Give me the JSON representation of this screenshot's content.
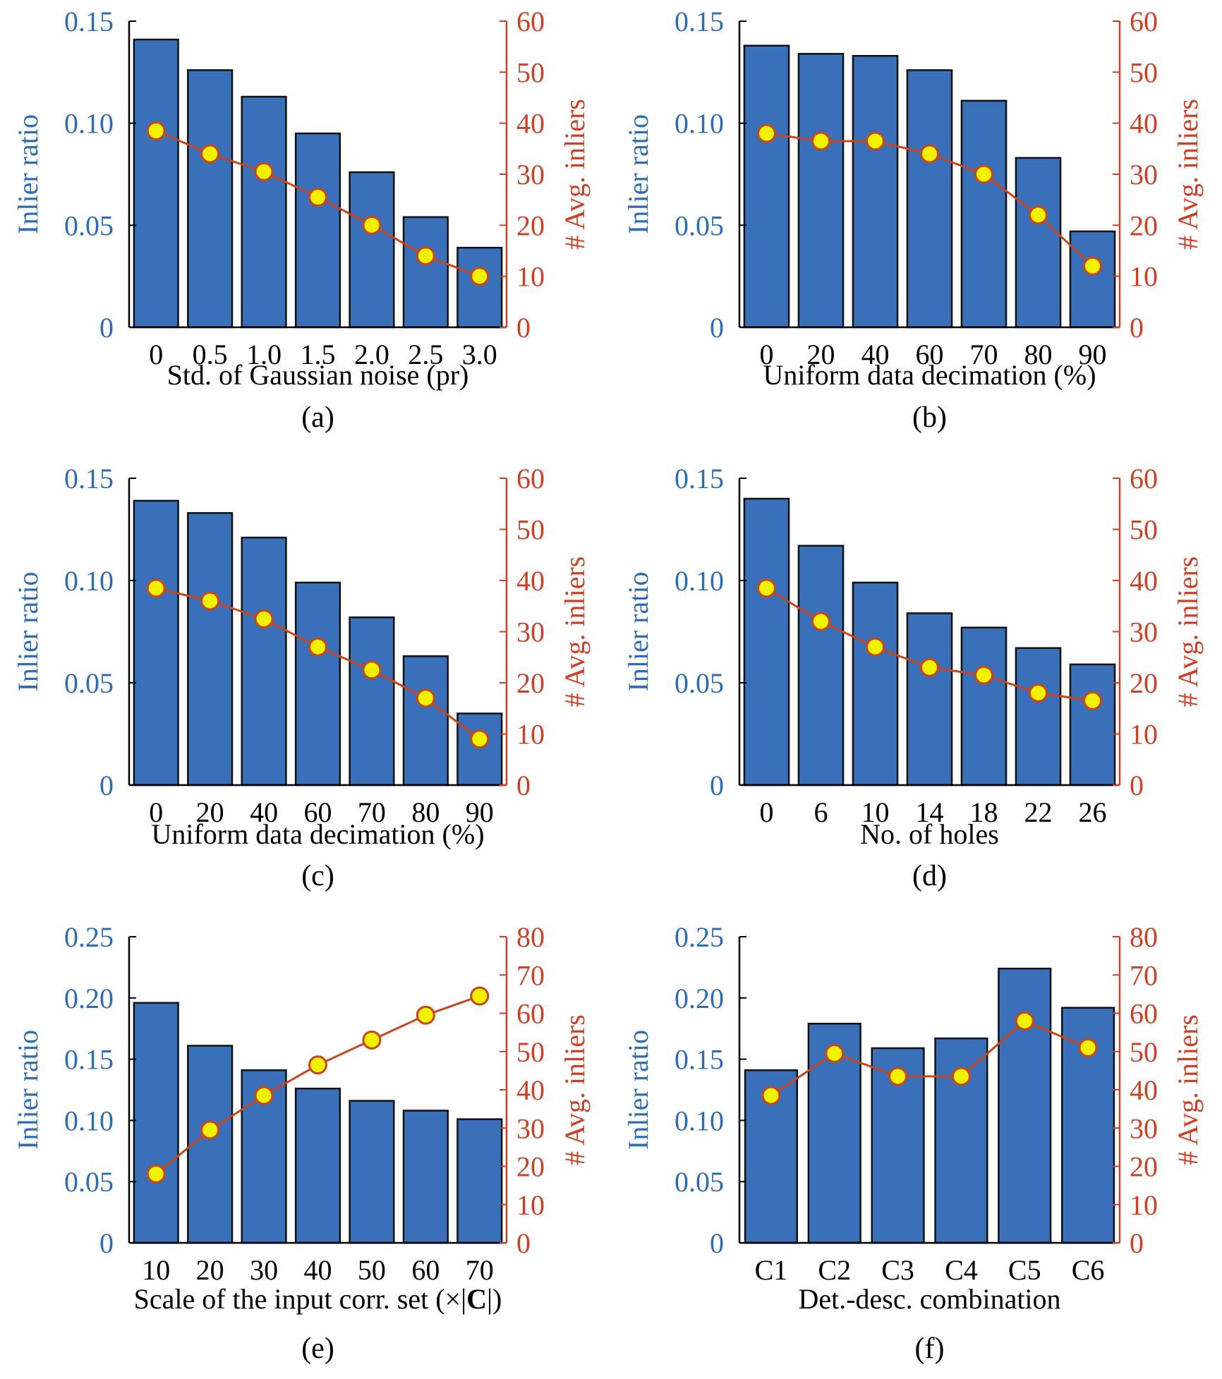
{
  "colors": {
    "bar": "#3a6fba",
    "line": "#c8461e",
    "marker_fill": "#f2f200",
    "left_axis": "#2e6db4",
    "right_axis": "#cc4125",
    "axis": "#000000"
  },
  "chart_data": [
    {
      "type": "bar",
      "caption": "(a)",
      "xlabel": "Std. of Gaussian noise (pr)",
      "ylabel": "Inlier ratio",
      "y2label": "# Avg. inliers",
      "categories": [
        "0",
        "0.5",
        "1.0",
        "1.5",
        "2.0",
        "2.5",
        "3.0"
      ],
      "ylim": [
        0,
        0.15
      ],
      "yticks": [
        "0",
        "0.05",
        "0.10",
        "0.15"
      ],
      "y2lim": [
        0,
        60
      ],
      "y2ticks": [
        "0",
        "10",
        "20",
        "30",
        "40",
        "50",
        "60"
      ],
      "series": [
        {
          "name": "Inlier ratio",
          "type": "bar",
          "axis": "left",
          "values": [
            0.141,
            0.126,
            0.113,
            0.095,
            0.076,
            0.054,
            0.039
          ]
        },
        {
          "name": "# Avg. inliers",
          "type": "line",
          "axis": "right",
          "values": [
            38.5,
            34.0,
            30.5,
            25.5,
            20.0,
            14.0,
            10.0
          ]
        }
      ]
    },
    {
      "type": "bar",
      "caption": "(b)",
      "xlabel": "Uniform data decimation (%)",
      "ylabel": "Inlier ratio",
      "y2label": "# Avg. inliers",
      "categories": [
        "0",
        "20",
        "40",
        "60",
        "70",
        "80",
        "90"
      ],
      "ylim": [
        0,
        0.15
      ],
      "yticks": [
        "0",
        "0.05",
        "0.10",
        "0.15"
      ],
      "y2lim": [
        0,
        60
      ],
      "y2ticks": [
        "0",
        "10",
        "20",
        "30",
        "40",
        "50",
        "60"
      ],
      "series": [
        {
          "name": "Inlier ratio",
          "type": "bar",
          "axis": "left",
          "values": [
            0.138,
            0.134,
            0.133,
            0.126,
            0.111,
            0.083,
            0.047
          ]
        },
        {
          "name": "# Avg. inliers",
          "type": "line",
          "axis": "right",
          "values": [
            38.0,
            36.5,
            36.5,
            34.0,
            30.0,
            22.0,
            12.0
          ]
        }
      ]
    },
    {
      "type": "bar",
      "caption": "(c)",
      "xlabel": "Uniform data decimation (%)",
      "ylabel": "Inlier ratio",
      "y2label": "# Avg. inliers",
      "categories": [
        "0",
        "20",
        "40",
        "60",
        "70",
        "80",
        "90"
      ],
      "ylim": [
        0,
        0.15
      ],
      "yticks": [
        "0",
        "0.05",
        "0.10",
        "0.15"
      ],
      "y2lim": [
        0,
        60
      ],
      "y2ticks": [
        "0",
        "10",
        "20",
        "30",
        "40",
        "50",
        "60"
      ],
      "series": [
        {
          "name": "Inlier ratio",
          "type": "bar",
          "axis": "left",
          "values": [
            0.139,
            0.133,
            0.121,
            0.099,
            0.082,
            0.063,
            0.035
          ]
        },
        {
          "name": "# Avg. inliers",
          "type": "line",
          "axis": "right",
          "values": [
            38.5,
            36.0,
            32.5,
            27.0,
            22.5,
            17.0,
            9.0
          ]
        }
      ]
    },
    {
      "type": "bar",
      "caption": "(d)",
      "xlabel": "No. of holes",
      "ylabel": "Inlier ratio",
      "y2label": "# Avg. inliers",
      "categories": [
        "0",
        "6",
        "10",
        "14",
        "18",
        "22",
        "26"
      ],
      "ylim": [
        0,
        0.15
      ],
      "yticks": [
        "0",
        "0.05",
        "0.10",
        "0.15"
      ],
      "y2lim": [
        0,
        60
      ],
      "y2ticks": [
        "0",
        "10",
        "20",
        "30",
        "40",
        "50",
        "60"
      ],
      "series": [
        {
          "name": "Inlier ratio",
          "type": "bar",
          "axis": "left",
          "values": [
            0.14,
            0.117,
            0.099,
            0.084,
            0.077,
            0.067,
            0.059
          ]
        },
        {
          "name": "# Avg. inliers",
          "type": "line",
          "axis": "right",
          "values": [
            38.5,
            32.0,
            27.0,
            23.0,
            21.5,
            18.0,
            16.5
          ]
        }
      ]
    },
    {
      "type": "bar",
      "caption": "(e)",
      "xlabel": "Scale of the input corr. set (×|",
      "xlabel_bold": "C",
      "xlabel_end": "|)",
      "ylabel": "Inlier ratio",
      "y2label": "# Avg. inliers",
      "categories": [
        "10",
        "20",
        "30",
        "40",
        "50",
        "60",
        "70"
      ],
      "ylim": [
        0,
        0.25
      ],
      "yticks": [
        "0",
        "0.05",
        "0.10",
        "0.15",
        "0.20",
        "0.25"
      ],
      "y2lim": [
        0,
        80
      ],
      "y2ticks": [
        "0",
        "10",
        "20",
        "30",
        "40",
        "50",
        "60",
        "70",
        "80"
      ],
      "series": [
        {
          "name": "Inlier ratio",
          "type": "bar",
          "axis": "left",
          "values": [
            0.196,
            0.161,
            0.141,
            0.126,
            0.116,
            0.108,
            0.101
          ]
        },
        {
          "name": "# Avg. inliers",
          "type": "line",
          "axis": "right",
          "values": [
            18.0,
            29.5,
            38.5,
            46.5,
            53.0,
            59.5,
            64.5
          ]
        }
      ]
    },
    {
      "type": "bar",
      "caption": "(f)",
      "xlabel": "Det.-desc. combination",
      "ylabel": "Inlier ratio",
      "y2label": "# Avg. inliers",
      "categories": [
        "C1",
        "C2",
        "C3",
        "C4",
        "C5",
        "C6"
      ],
      "ylim": [
        0,
        0.25
      ],
      "yticks": [
        "0",
        "0.05",
        "0.10",
        "0.15",
        "0.20",
        "0.25"
      ],
      "y2lim": [
        0,
        80
      ],
      "y2ticks": [
        "0",
        "10",
        "20",
        "30",
        "40",
        "50",
        "60",
        "70",
        "80"
      ],
      "series": [
        {
          "name": "Inlier ratio",
          "type": "bar",
          "axis": "left",
          "values": [
            0.141,
            0.179,
            0.159,
            0.167,
            0.224,
            0.192
          ]
        },
        {
          "name": "# Avg. inliers",
          "type": "line",
          "axis": "right",
          "values": [
            38.5,
            49.5,
            43.5,
            43.5,
            58.0,
            51.0
          ]
        }
      ]
    }
  ]
}
